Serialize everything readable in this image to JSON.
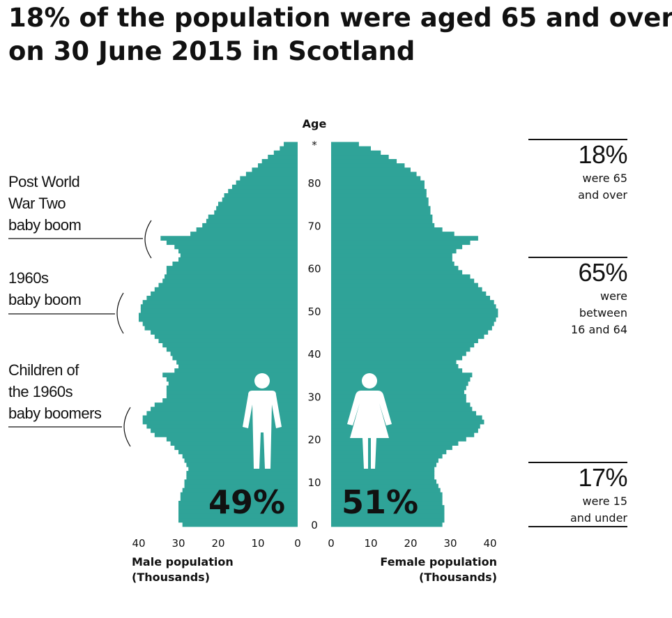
{
  "chart_data": {
    "type": "population_pyramid",
    "title": [
      "18% of the population were aged 65 and over",
      "on 30 June 2015 in Scotland"
    ],
    "y_axis_title": "Age",
    "yticks": [
      0,
      10,
      20,
      30,
      40,
      50,
      60,
      70,
      80,
      {
        "value": 89,
        "label": "*"
      }
    ],
    "xlim": [
      0,
      40
    ],
    "xticks": [
      40,
      30,
      20,
      10,
      0
    ],
    "series": [
      {
        "name": "Male",
        "color": "#2fa398",
        "share": "49%",
        "axis_label": [
          "Male population",
          "(Thousands)"
        ],
        "values": [
          29,
          30,
          30,
          30,
          30,
          30,
          29.5,
          29.5,
          29,
          28.5,
          28.5,
          28,
          28,
          27.5,
          28,
          28.5,
          29,
          30,
          31,
          32,
          33,
          36,
          37,
          38,
          39,
          39,
          38,
          37,
          36,
          34,
          33,
          33,
          33,
          32.5,
          33,
          34,
          31,
          30,
          30.5,
          31.5,
          32,
          33,
          34,
          35,
          36,
          37,
          38.5,
          39,
          40,
          40,
          39.5,
          39.5,
          39,
          38,
          37,
          36,
          35,
          34,
          33.5,
          33,
          33,
          31.5,
          30,
          29.5,
          30,
          31,
          33,
          34.5,
          27,
          25.5,
          24,
          23,
          22.5,
          21,
          20.5,
          20,
          19,
          18.5,
          17.5,
          16.5,
          15.5,
          14.5,
          13,
          11.5,
          10,
          9,
          7.5,
          6,
          4.5,
          3.5
        ]
      },
      {
        "name": "Female",
        "color": "#2fa398",
        "share": "51%",
        "axis_label": [
          "Female population",
          "(Thousands)"
        ],
        "values": [
          28,
          28.5,
          28.5,
          28.5,
          28.5,
          28,
          28,
          28,
          27.5,
          27,
          26.5,
          26,
          26,
          26,
          26.5,
          27,
          28,
          29,
          30.5,
          32,
          34,
          36,
          37,
          37.5,
          38.5,
          38,
          36.5,
          35.5,
          35,
          34,
          34,
          33.5,
          34,
          34.5,
          35,
          35.5,
          33,
          32,
          31.5,
          33,
          34,
          35,
          36,
          37,
          38.5,
          39.5,
          40.5,
          41,
          41.5,
          42,
          42,
          41.5,
          41,
          40,
          39,
          38,
          37,
          36,
          35,
          33,
          32,
          31,
          30.5,
          30.5,
          31.5,
          33,
          35,
          37,
          31,
          28,
          26,
          25.5,
          25.5,
          25,
          25,
          24.5,
          24.5,
          24,
          24,
          23.5,
          23.5,
          22.5,
          21.5,
          20,
          18.5,
          16.5,
          14.5,
          12.5,
          10,
          7
        ]
      }
    ],
    "annotations": [
      {
        "lines": [
          "Post World",
          "War Two",
          "baby boom"
        ]
      },
      {
        "lines": [
          "1960s",
          "baby boom"
        ]
      },
      {
        "lines": [
          "Children of",
          "the 1960s",
          "baby boomers"
        ]
      }
    ],
    "stats": [
      {
        "value": "18%",
        "lines": [
          "were 65",
          "and over"
        ]
      },
      {
        "value": "65%",
        "lines": [
          "were",
          "between",
          "16 and 64"
        ]
      },
      {
        "value": "17%",
        "lines": [
          "were 15",
          "and under"
        ]
      }
    ]
  }
}
